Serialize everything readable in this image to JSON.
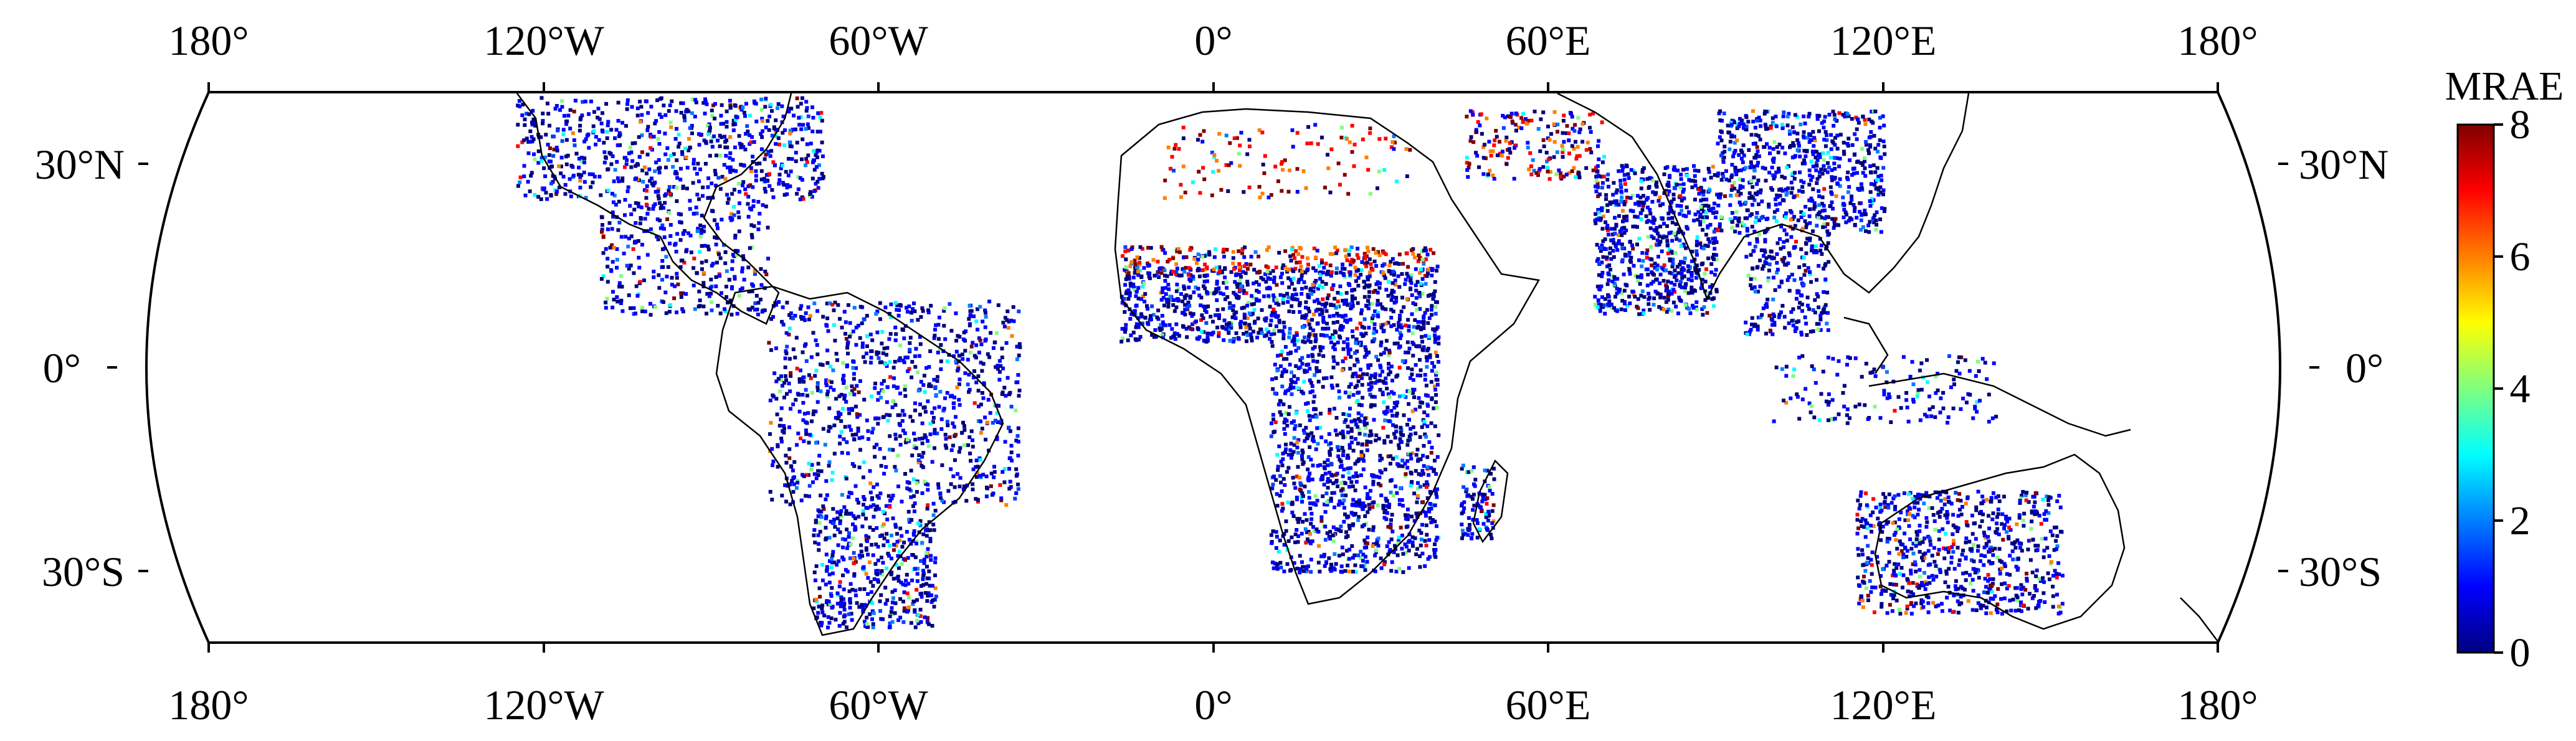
{
  "map": {
    "colorbar": {
      "title": "MRAE",
      "min": 0,
      "max": 8,
      "ticks": [
        "0",
        "2",
        "4",
        "6",
        "8"
      ],
      "colormap": [
        "#00007f",
        "#0000ff",
        "#007fff",
        "#00ffff",
        "#7fff7f",
        "#ffff00",
        "#ff7f00",
        "#ff0000",
        "#7f0000"
      ]
    },
    "lon_ticks": [
      "180°",
      "120°W",
      "60°W",
      "0°",
      "60°E",
      "120°E",
      "180°"
    ],
    "lat_ticks_left": [
      "30°N",
      "0°",
      "30°S"
    ],
    "lat_ticks_right": [
      "30°N",
      "0°",
      "30°S"
    ],
    "lat_range": [
      -40,
      40
    ],
    "lon_range": [
      -180,
      180
    ]
  }
}
